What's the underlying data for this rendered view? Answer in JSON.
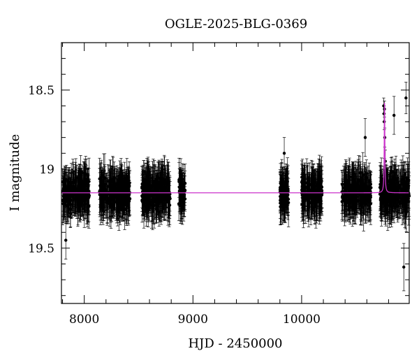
{
  "chart_data": {
    "type": "scatter",
    "title": "OGLE-2025-BLG-0369",
    "xlabel": "HJD - 2450000",
    "ylabel": "I magnitude",
    "xlim": [
      7790,
      10990
    ],
    "ylim": [
      19.85,
      18.2
    ],
    "y_inverted": true,
    "grid": false,
    "legend": "none",
    "x_ticks": [
      8000,
      9000,
      10000
    ],
    "x_tick_labels": [
      "8000",
      "9000",
      "10000"
    ],
    "y_ticks": [
      18.5,
      19,
      19.5
    ],
    "y_tick_labels": [
      "18.5",
      "19",
      "19.5"
    ],
    "colors": {
      "points": "#000000",
      "model": "#cc33cc",
      "frame": "#000000"
    },
    "observing_seasons": [
      {
        "x_range": [
          7800,
          8050
        ],
        "mag_center": 19.15,
        "mag_spread": 0.15,
        "error": 0.12
      },
      {
        "x_range": [
          8140,
          8420
        ],
        "mag_center": 19.15,
        "mag_spread": 0.15,
        "error": 0.12
      },
      {
        "x_range": [
          8530,
          8790
        ],
        "mag_center": 19.15,
        "mag_spread": 0.15,
        "error": 0.12
      },
      {
        "x_range": [
          8870,
          8930
        ],
        "mag_center": 19.15,
        "mag_spread": 0.15,
        "error": 0.12
      },
      {
        "x_range": [
          9800,
          9880
        ],
        "mag_center": 19.15,
        "mag_spread": 0.15,
        "error": 0.12
      },
      {
        "x_range": [
          10000,
          10190
        ],
        "mag_center": 19.15,
        "mag_spread": 0.15,
        "error": 0.12
      },
      {
        "x_range": [
          10370,
          10640
        ],
        "mag_center": 19.15,
        "mag_spread": 0.15,
        "error": 0.12
      },
      {
        "x_range": [
          10720,
          10990
        ],
        "mag_center": 19.15,
        "mag_spread": 0.15,
        "error": 0.12
      }
    ],
    "event_points": [
      {
        "x": 10755,
        "y": 18.6,
        "err": 0.05
      },
      {
        "x": 10758,
        "y": 18.65,
        "err": 0.05
      },
      {
        "x": 10760,
        "y": 18.7,
        "err": 0.05
      },
      {
        "x": 10762,
        "y": 18.62,
        "err": 0.05
      },
      {
        "x": 10765,
        "y": 18.8,
        "err": 0.06
      },
      {
        "x": 10770,
        "y": 18.95,
        "err": 0.07
      },
      {
        "x": 10776,
        "y": 19.05,
        "err": 0.08
      }
    ],
    "outliers": [
      {
        "x": 9840,
        "y": 18.9,
        "err": 0.1
      },
      {
        "x": 10585,
        "y": 18.8,
        "err": 0.12
      },
      {
        "x": 10850,
        "y": 18.66,
        "err": 0.12
      },
      {
        "x": 10960,
        "y": 18.55,
        "err": 0.1
      },
      {
        "x": 10940,
        "y": 19.62,
        "err": 0.15
      },
      {
        "x": 7830,
        "y": 19.45,
        "err": 0.12
      }
    ],
    "model_line": {
      "baseline_mag": 19.15,
      "peak_x": 10763,
      "peak_mag": 18.58,
      "width_days": 7
    }
  }
}
